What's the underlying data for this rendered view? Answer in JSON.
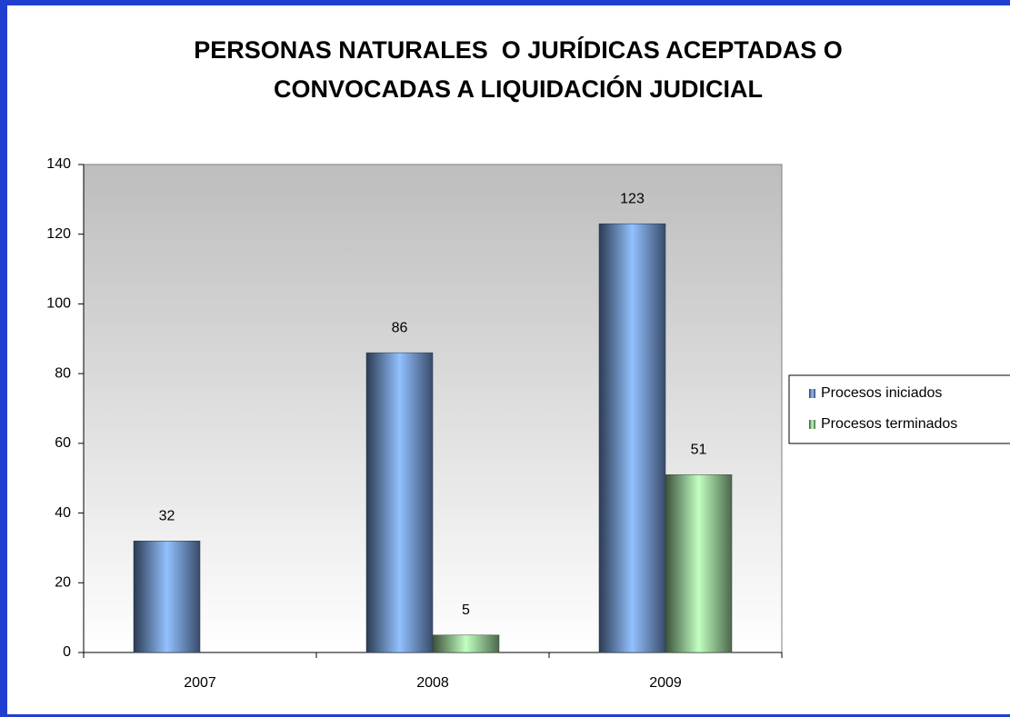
{
  "chart_data": {
    "type": "bar",
    "title": [
      "PERSONAS NATURALES  O JURÍDICAS ACEPTADAS O",
      "CONVOCADAS A LIQUIDACIÓN JUDICIAL"
    ],
    "categories": [
      "2007",
      "2008",
      "2009"
    ],
    "series": [
      {
        "name": "Procesos iniciados",
        "color": "#7fa8ee",
        "values": [
          32,
          86,
          123
        ]
      },
      {
        "name": "Procesos terminados",
        "color": "#a8e6a8",
        "values": [
          null,
          5,
          51
        ]
      }
    ],
    "ylim": [
      0,
      140
    ],
    "yticks": [
      0,
      20,
      40,
      60,
      80,
      100,
      120,
      140
    ],
    "legend": "right",
    "data_labels": true
  }
}
